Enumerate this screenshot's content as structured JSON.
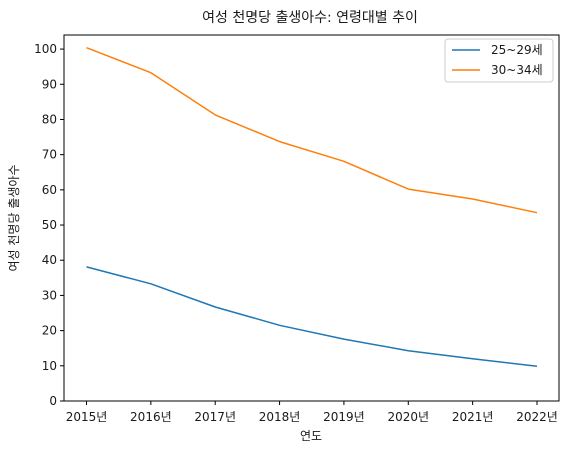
{
  "chart_data": {
    "type": "line",
    "title": "여성 천명당 출생아수: 연령대별 추이",
    "xlabel": "연도",
    "ylabel": "여성 천명당 출생아수",
    "categories": [
      "2015년",
      "2016년",
      "2017년",
      "2018년",
      "2019년",
      "2020년",
      "2021년",
      "2022년"
    ],
    "ylim": [
      0,
      104
    ],
    "yticks": [
      0,
      10,
      20,
      30,
      40,
      50,
      60,
      70,
      80,
      90,
      100
    ],
    "grid": false,
    "legend_position": "top-right",
    "series": [
      {
        "name": "25~29세",
        "color": "#1f77b4",
        "values": [
          38.1,
          33.3,
          26.7,
          21.5,
          17.6,
          14.3,
          12.0,
          9.9
        ]
      },
      {
        "name": "30~34세",
        "color": "#ff7f0e",
        "values": [
          100.4,
          93.3,
          81.3,
          73.7,
          68.1,
          60.2,
          57.4,
          53.5
        ]
      }
    ]
  }
}
